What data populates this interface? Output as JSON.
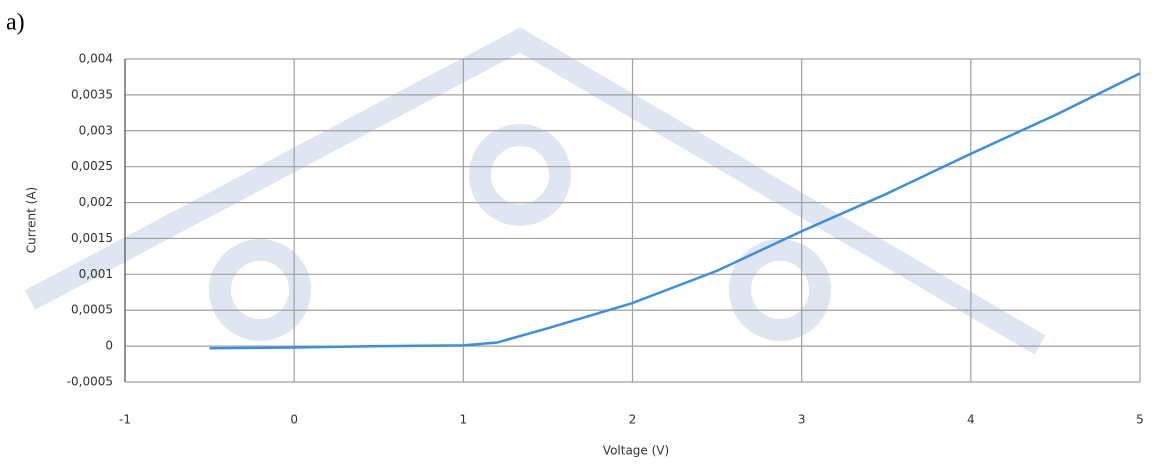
{
  "chart_data": {
    "type": "line",
    "label": "a)",
    "x_label": "Voltage (V)",
    "y_label": "Current (A)",
    "x": [
      -0.5,
      0,
      0.5,
      1,
      1.2,
      1.5,
      2,
      2.5,
      3,
      3.5,
      4,
      4.5,
      5
    ],
    "values": [
      -3e-05,
      -2e-05,
      0,
      1e-05,
      5e-05,
      0.00025,
      0.0006,
      0.00105,
      0.0016,
      0.00212,
      0.00268,
      0.00322,
      0.0038
    ],
    "color": "#3b8fde",
    "xlim": [
      -1,
      5
    ],
    "xticks": [
      -1,
      0,
      1,
      2,
      3,
      4,
      5
    ],
    "ylim": [
      -0.0005,
      0.004
    ],
    "yticks": [
      {
        "value": -0.0005,
        "label": "-0,0005"
      },
      0,
      {
        "value": 0.0005,
        "label": "0,0005"
      },
      {
        "value": 0.001,
        "label": "0,001"
      },
      {
        "value": 0.0015,
        "label": "0,0015"
      },
      {
        "value": 0.002,
        "label": "0,002"
      },
      {
        "value": 0.0025,
        "label": "0,0025"
      },
      {
        "value": 0.003,
        "label": "0,003"
      },
      {
        "value": 0.0035,
        "label": "0,0035"
      },
      {
        "value": 0.004,
        "label": "0,004"
      }
    ],
    "grid": true
  }
}
